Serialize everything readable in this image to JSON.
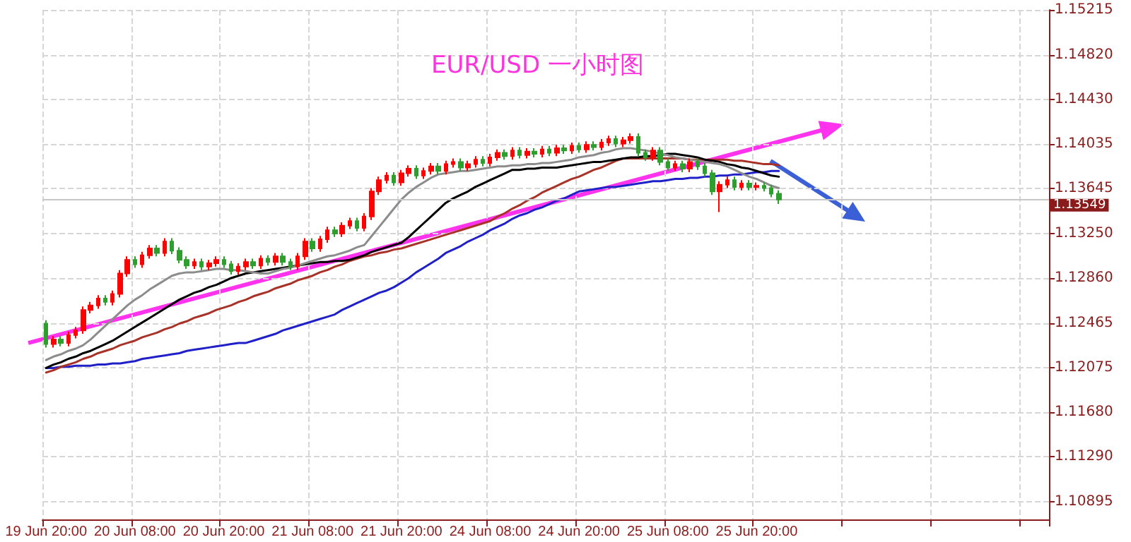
{
  "chart_data": {
    "type": "candlestick",
    "title": "EUR/USD 一小时图",
    "categories": [
      "19 Jun 20:00",
      null,
      null,
      null,
      null,
      null,
      null,
      null,
      null,
      null,
      null,
      null,
      "20 Jun 08:00",
      null,
      null,
      null,
      null,
      null,
      null,
      null,
      null,
      null,
      null,
      null,
      "20 Jun 20:00",
      null,
      null,
      null,
      null,
      null,
      null,
      null,
      null,
      null,
      null,
      null,
      "21 Jun 08:00",
      null,
      null,
      null,
      null,
      null,
      null,
      null,
      null,
      null,
      null,
      null,
      "21 Jun 20:00",
      null,
      null,
      null,
      null,
      null,
      null,
      null,
      null,
      null,
      null,
      null,
      "24 Jun 08:00",
      null,
      null,
      null,
      null,
      null,
      null,
      null,
      null,
      null,
      null,
      null,
      "24 Jun 20:00",
      null,
      null,
      null,
      null,
      null,
      null,
      null,
      null,
      null,
      null,
      null,
      "25 Jun 08:00",
      null,
      null,
      null,
      null,
      null,
      null,
      null,
      null,
      null,
      null,
      null,
      "25 Jun 20:00",
      null,
      null,
      null
    ],
    "ohlc": [
      [
        1.1246,
        1.1249,
        1.1225,
        1.1228
      ],
      [
        1.1228,
        1.1235,
        1.1225,
        1.1232
      ],
      [
        1.1232,
        1.1235,
        1.1226,
        1.1229
      ],
      [
        1.1229,
        1.1239,
        1.1226,
        1.1236
      ],
      [
        1.1236,
        1.1243,
        1.1233,
        1.124
      ],
      [
        1.124,
        1.1261,
        1.1237,
        1.1258
      ],
      [
        1.1258,
        1.1265,
        1.1255,
        1.1262
      ],
      [
        1.1262,
        1.1271,
        1.1259,
        1.1268
      ],
      [
        1.1268,
        1.1271,
        1.1262,
        1.1265
      ],
      [
        1.1265,
        1.1275,
        1.1262,
        1.1272
      ],
      [
        1.1272,
        1.1293,
        1.1269,
        1.129
      ],
      [
        1.129,
        1.1305,
        1.1287,
        1.1302
      ],
      [
        1.1302,
        1.1305,
        1.1295,
        1.1298
      ],
      [
        1.1298,
        1.1309,
        1.1295,
        1.1306
      ],
      [
        1.1306,
        1.1315,
        1.1303,
        1.1312
      ],
      [
        1.1312,
        1.1315,
        1.1305,
        1.1308
      ],
      [
        1.1308,
        1.1321,
        1.1305,
        1.1318
      ],
      [
        1.1318,
        1.1321,
        1.1307,
        1.131
      ],
      [
        1.131,
        1.1313,
        1.1299,
        1.1302
      ],
      [
        1.1302,
        1.1305,
        1.1294,
        1.1297
      ],
      [
        1.1297,
        1.1303,
        1.1294,
        1.13
      ],
      [
        1.13,
        1.1303,
        1.1293,
        1.1296
      ],
      [
        1.1296,
        1.1302,
        1.1293,
        1.1299
      ],
      [
        1.1299,
        1.1305,
        1.1296,
        1.1302
      ],
      [
        1.1302,
        1.1305,
        1.1295,
        1.1298
      ],
      [
        1.1298,
        1.1301,
        1.1289,
        1.1292
      ],
      [
        1.1292,
        1.1299,
        1.1289,
        1.1296
      ],
      [
        1.1296,
        1.1303,
        1.1293,
        1.13
      ],
      [
        1.13,
        1.1303,
        1.1294,
        1.1297
      ],
      [
        1.1297,
        1.1306,
        1.1294,
        1.1303
      ],
      [
        1.1303,
        1.1306,
        1.1297,
        1.13
      ],
      [
        1.13,
        1.1308,
        1.1297,
        1.1305
      ],
      [
        1.1305,
        1.1308,
        1.1297,
        1.13
      ],
      [
        1.13,
        1.1303,
        1.1293,
        1.1296
      ],
      [
        1.1296,
        1.1308,
        1.1293,
        1.1305
      ],
      [
        1.1305,
        1.1321,
        1.1302,
        1.1318
      ],
      [
        1.1318,
        1.1321,
        1.1309,
        1.1312
      ],
      [
        1.1312,
        1.1323,
        1.1309,
        1.132
      ],
      [
        1.132,
        1.1331,
        1.1317,
        1.1328
      ],
      [
        1.1328,
        1.1331,
        1.1322,
        1.1325
      ],
      [
        1.1325,
        1.1335,
        1.1322,
        1.1332
      ],
      [
        1.1332,
        1.1339,
        1.1329,
        1.1336
      ],
      [
        1.1336,
        1.1339,
        1.1327,
        1.133
      ],
      [
        1.133,
        1.1343,
        1.1327,
        1.134
      ],
      [
        1.134,
        1.1365,
        1.1337,
        1.1362
      ],
      [
        1.1362,
        1.1375,
        1.1359,
        1.1372
      ],
      [
        1.1372,
        1.1379,
        1.1369,
        1.1376
      ],
      [
        1.1376,
        1.1379,
        1.1367,
        1.137
      ],
      [
        1.137,
        1.1381,
        1.1367,
        1.1378
      ],
      [
        1.1378,
        1.1385,
        1.1375,
        1.1382
      ],
      [
        1.1382,
        1.1385,
        1.1373,
        1.1376
      ],
      [
        1.1376,
        1.1383,
        1.1373,
        1.138
      ],
      [
        1.138,
        1.1387,
        1.1377,
        1.1384
      ],
      [
        1.1384,
        1.1387,
        1.1377,
        1.138
      ],
      [
        1.138,
        1.1389,
        1.1377,
        1.1386
      ],
      [
        1.1386,
        1.1391,
        1.1383,
        1.1388
      ],
      [
        1.1388,
        1.1391,
        1.138,
        1.1383
      ],
      [
        1.1383,
        1.1389,
        1.138,
        1.1386
      ],
      [
        1.1386,
        1.1393,
        1.1383,
        1.139
      ],
      [
        1.139,
        1.1393,
        1.1384,
        1.1387
      ],
      [
        1.1387,
        1.1395,
        1.1384,
        1.1392
      ],
      [
        1.1392,
        1.1399,
        1.1389,
        1.1396
      ],
      [
        1.1396,
        1.1399,
        1.139,
        1.1393
      ],
      [
        1.1393,
        1.1401,
        1.139,
        1.1398
      ],
      [
        1.1398,
        1.1401,
        1.1391,
        1.1394
      ],
      [
        1.1394,
        1.14,
        1.1391,
        1.1397
      ],
      [
        1.1397,
        1.14,
        1.1392,
        1.1395
      ],
      [
        1.1395,
        1.1402,
        1.1392,
        1.1399
      ],
      [
        1.1399,
        1.1402,
        1.1393,
        1.1396
      ],
      [
        1.1396,
        1.1403,
        1.1393,
        1.14
      ],
      [
        1.14,
        1.1403,
        1.1395,
        1.1398
      ],
      [
        1.1398,
        1.1405,
        1.1395,
        1.1402
      ],
      [
        1.1402,
        1.1405,
        1.1396,
        1.1399
      ],
      [
        1.1399,
        1.1406,
        1.1396,
        1.1403
      ],
      [
        1.1403,
        1.1406,
        1.1398,
        1.1401
      ],
      [
        1.1401,
        1.1408,
        1.1398,
        1.1405
      ],
      [
        1.1405,
        1.1411,
        1.1402,
        1.1408
      ],
      [
        1.1408,
        1.1411,
        1.1401,
        1.1404
      ],
      [
        1.1404,
        1.141,
        1.1401,
        1.1407
      ],
      [
        1.1407,
        1.1413,
        1.1404,
        1.141
      ],
      [
        1.141,
        1.1413,
        1.1393,
        1.1396
      ],
      [
        1.1396,
        1.1399,
        1.1389,
        1.1392
      ],
      [
        1.1392,
        1.1401,
        1.1389,
        1.1398
      ],
      [
        1.1398,
        1.1401,
        1.1385,
        1.1388
      ],
      [
        1.1388,
        1.1391,
        1.138,
        1.1383
      ],
      [
        1.1383,
        1.1389,
        1.138,
        1.1386
      ],
      [
        1.1386,
        1.1389,
        1.1379,
        1.1382
      ],
      [
        1.1382,
        1.1391,
        1.1379,
        1.1388
      ],
      [
        1.1388,
        1.1391,
        1.1381,
        1.1384
      ],
      [
        1.1384,
        1.1387,
        1.1375,
        1.1378
      ],
      [
        1.1378,
        1.1381,
        1.1359,
        1.1362
      ],
      [
        1.1362,
        1.1371,
        1.1344,
        1.1368
      ],
      [
        1.1368,
        1.1375,
        1.1365,
        1.1372
      ],
      [
        1.1372,
        1.1375,
        1.1363,
        1.1366
      ],
      [
        1.1366,
        1.1372,
        1.1363,
        1.1369
      ],
      [
        1.1369,
        1.1372,
        1.1363,
        1.1366
      ],
      [
        1.1366,
        1.137,
        1.1363,
        1.1367
      ],
      [
        1.1367,
        1.137,
        1.1362,
        1.1365
      ],
      [
        1.1365,
        1.1368,
        1.1357,
        1.136
      ],
      [
        1.136,
        1.1363,
        1.1351,
        1.13549
      ]
    ],
    "series": [
      {
        "type": "line",
        "color": "#2020c8",
        "values": [
          1.1207,
          1.1207,
          1.1208,
          1.1208,
          1.1209,
          1.1209,
          1.1209,
          1.121,
          1.121,
          1.1211,
          1.1211,
          1.1212,
          1.1213,
          1.1215,
          1.1216,
          1.1217,
          1.1218,
          1.1219,
          1.122,
          1.1222,
          1.1223,
          1.1224,
          1.1225,
          1.1226,
          1.1227,
          1.1228,
          1.1229,
          1.1229,
          1.1231,
          1.1233,
          1.1235,
          1.1237,
          1.124,
          1.1242,
          1.1244,
          1.1246,
          1.1248,
          1.125,
          1.1252,
          1.1254,
          1.1258,
          1.1261,
          1.1264,
          1.1267,
          1.127,
          1.1273,
          1.1275,
          1.1278,
          1.1282,
          1.1286,
          1.1291,
          1.1295,
          1.1299,
          1.1303,
          1.1308,
          1.1311,
          1.1314,
          1.1318,
          1.1321,
          1.1324,
          1.1328,
          1.1331,
          1.1334,
          1.1338,
          1.1341,
          1.1343,
          1.1346,
          1.1348,
          1.1351,
          1.1354,
          1.1356,
          1.1359,
          1.1362,
          1.1363,
          1.1364,
          1.1365,
          1.1366,
          1.1366,
          1.1367,
          1.1368,
          1.1369,
          1.137,
          1.1371,
          1.1371,
          1.1372,
          1.1373,
          1.1373,
          1.1374,
          1.1374,
          1.1375,
          1.1375,
          1.1376,
          1.1376,
          1.1377,
          1.1377,
          1.1378,
          1.1379,
          1.1379,
          1.138,
          1.138
        ]
      },
      {
        "type": "line",
        "color": "#a83228",
        "values": [
          1.1203,
          1.1205,
          1.1208,
          1.121,
          1.1212,
          1.1215,
          1.1217,
          1.122,
          1.1222,
          1.1224,
          1.1227,
          1.1229,
          1.1231,
          1.1234,
          1.1236,
          1.1238,
          1.1241,
          1.1243,
          1.1246,
          1.1248,
          1.1251,
          1.1253,
          1.1255,
          1.1258,
          1.126,
          1.1262,
          1.1265,
          1.1267,
          1.127,
          1.1272,
          1.1274,
          1.1277,
          1.1279,
          1.1281,
          1.1284,
          1.1286,
          1.1288,
          1.1291,
          1.1293,
          1.1296,
          1.1298,
          1.1301,
          1.1303,
          1.1305,
          1.1306,
          1.1308,
          1.1309,
          1.1311,
          1.1312,
          1.1314,
          1.1316,
          1.1318,
          1.132,
          1.1322,
          1.1324,
          1.1326,
          1.1328,
          1.133,
          1.1332,
          1.1334,
          1.1336,
          1.134,
          1.1343,
          1.1347,
          1.135,
          1.1354,
          1.1357,
          1.1361,
          1.1364,
          1.1367,
          1.137,
          1.1373,
          1.1375,
          1.1378,
          1.1381,
          1.1383,
          1.1386,
          1.1389,
          1.1391,
          1.1391,
          1.1391,
          1.1391,
          1.1391,
          1.1391,
          1.1391,
          1.1391,
          1.1391,
          1.139,
          1.139,
          1.139,
          1.139,
          1.139,
          1.139,
          1.1389,
          1.1389,
          1.1388,
          1.1387,
          1.1386,
          1.1386,
          1.1385
        ]
      },
      {
        "type": "line",
        "color": "#000000",
        "values": [
          1.1207,
          1.121,
          1.1212,
          1.1215,
          1.1217,
          1.122,
          1.1222,
          1.1225,
          1.1228,
          1.1231,
          1.1235,
          1.1239,
          1.1243,
          1.1247,
          1.1251,
          1.1255,
          1.1259,
          1.1263,
          1.1267,
          1.127,
          1.1273,
          1.1275,
          1.1278,
          1.128,
          1.1283,
          1.1286,
          1.1288,
          1.129,
          1.1291,
          1.1292,
          1.1293,
          1.1294,
          1.1295,
          1.1296,
          1.1297,
          1.1298,
          1.1299,
          1.13,
          1.13,
          1.1301,
          1.1301,
          1.1302,
          1.1304,
          1.1306,
          1.1309,
          1.1311,
          1.1313,
          1.1315,
          1.1317,
          1.1322,
          1.1328,
          1.1334,
          1.134,
          1.1346,
          1.1352,
          1.1356,
          1.1359,
          1.1362,
          1.1366,
          1.1369,
          1.1372,
          1.1375,
          1.1378,
          1.1381,
          1.1381,
          1.1382,
          1.1382,
          1.1383,
          1.1383,
          1.1383,
          1.1384,
          1.1385,
          1.1386,
          1.1387,
          1.1388,
          1.1388,
          1.1389,
          1.139,
          1.1391,
          1.1392,
          1.1392,
          1.1393,
          1.1393,
          1.1394,
          1.1395,
          1.1395,
          1.1394,
          1.1393,
          1.1392,
          1.139,
          1.1389,
          1.1388,
          1.1386,
          1.1385,
          1.1383,
          1.1382,
          1.138,
          1.1378,
          1.1376,
          1.1375
        ]
      },
      {
        "type": "line",
        "color": "#8c8c8c",
        "values": [
          1.1214,
          1.1217,
          1.1219,
          1.1222,
          1.1224,
          1.1227,
          1.1232,
          1.1238,
          1.1244,
          1.125,
          1.1256,
          1.1262,
          1.1267,
          1.1271,
          1.1276,
          1.128,
          1.1284,
          1.1288,
          1.129,
          1.1291,
          1.1291,
          1.1292,
          1.1293,
          1.1294,
          1.1294,
          1.1293,
          1.1293,
          1.1292,
          1.1291,
          1.129,
          1.129,
          1.1292,
          1.1294,
          1.1295,
          1.1297,
          1.1299,
          1.1301,
          1.1303,
          1.1305,
          1.1306,
          1.1308,
          1.131,
          1.1313,
          1.1315,
          1.1323,
          1.1331,
          1.1339,
          1.1347,
          1.1355,
          1.1361,
          1.1366,
          1.137,
          1.1374,
          1.1377,
          1.1378,
          1.1379,
          1.138,
          1.138,
          1.1381,
          1.1382,
          1.1383,
          1.1384,
          1.1384,
          1.1385,
          1.1385,
          1.1386,
          1.1386,
          1.1387,
          1.1387,
          1.1388,
          1.1389,
          1.139,
          1.1392,
          1.1393,
          1.1394,
          1.1396,
          1.1397,
          1.1399,
          1.14,
          1.14,
          1.1399,
          1.1398,
          1.1397,
          1.1395,
          1.1394,
          1.1392,
          1.1391,
          1.139,
          1.1389,
          1.1388,
          1.1387,
          1.1386,
          1.1384,
          1.1381,
          1.1378,
          1.1375,
          1.1373,
          1.137,
          1.1367,
          1.1365
        ]
      }
    ],
    "ylim": [
      1.1074,
      1.15215
    ],
    "yticks": [
      {
        "value": 1.10895,
        "label": "1.10895"
      },
      {
        "value": 1.1129,
        "label": "1.11290"
      },
      {
        "value": 1.1168,
        "label": "1.11680"
      },
      {
        "value": 1.12075,
        "label": "1.12075"
      },
      {
        "value": 1.12465,
        "label": "1.12465"
      },
      {
        "value": 1.1286,
        "label": "1.12860"
      },
      {
        "value": 1.1325,
        "label": "1.13250"
      },
      {
        "value": 1.13645,
        "label": "1.13645"
      },
      {
        "value": 1.14035,
        "label": "1.14035"
      },
      {
        "value": 1.1443,
        "label": "1.14430"
      },
      {
        "value": 1.1482,
        "label": "1.14820"
      },
      {
        "value": 1.15215,
        "label": "1.15215"
      }
    ],
    "ref_lines": [
      {
        "axis": "y",
        "value": 1.13549,
        "label": "1.13549",
        "color": "#c8c8c8"
      }
    ],
    "grid": true,
    "marker": "none"
  }
}
